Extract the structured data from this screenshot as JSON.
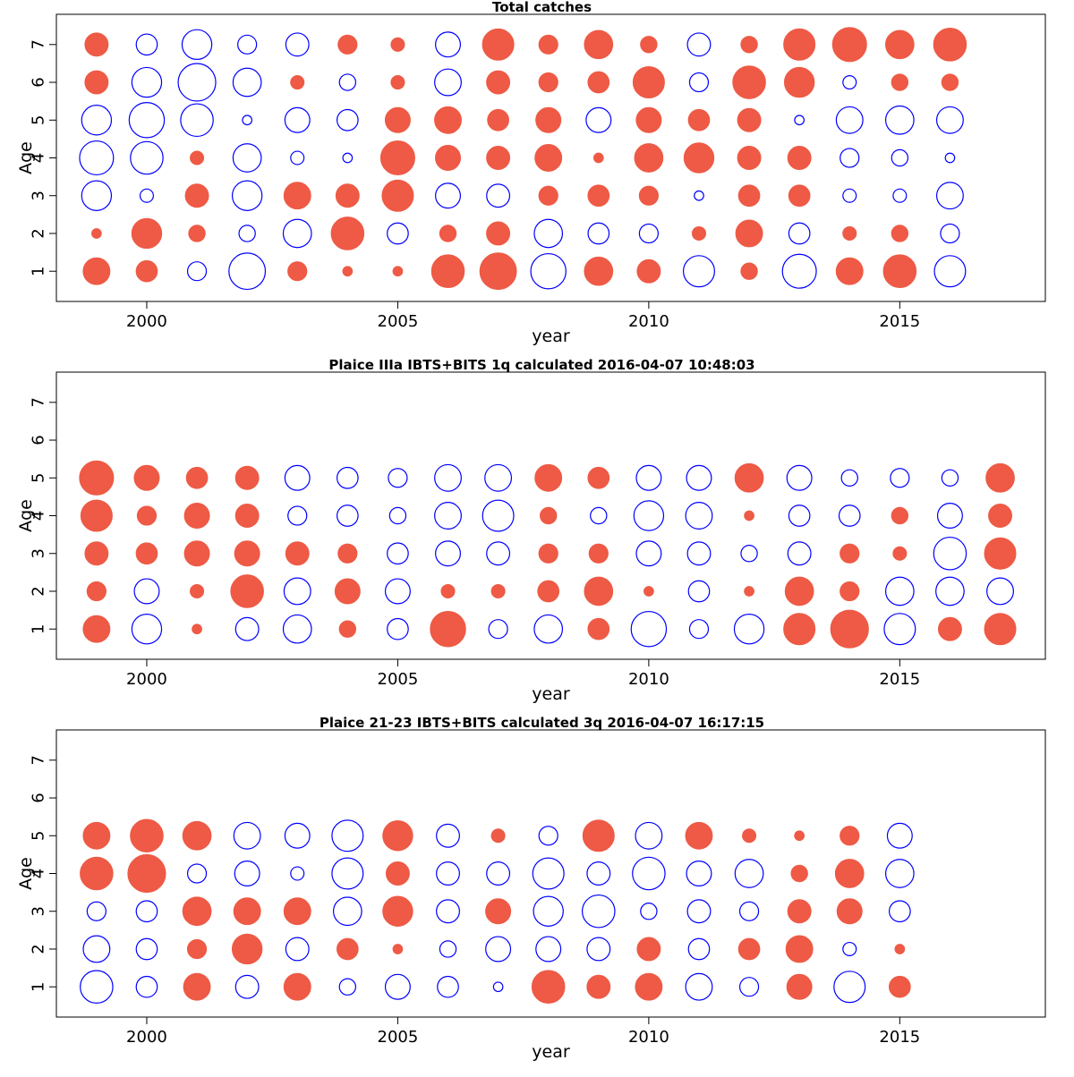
{
  "colors": {
    "positive": "#EE5A45",
    "negative": "#0000FF",
    "axis": "#000000"
  },
  "chart_data": [
    {
      "type": "scatter",
      "title": "Total catches",
      "xlabel": "year",
      "ylabel": "Age",
      "xlim": [
        1998.2,
        2017.9
      ],
      "ylim": [
        0.2,
        7.8
      ],
      "xticks": [
        2000,
        2005,
        2010,
        2015
      ],
      "yticks": [
        1,
        2,
        3,
        4,
        5,
        6,
        7
      ],
      "encoding": "circle area ~ |residual|; filled red = positive, open blue = negative",
      "years": [
        1999,
        2000,
        2001,
        2002,
        2003,
        2004,
        2005,
        2006,
        2007,
        2008,
        2009,
        2010,
        2011,
        2012,
        2013,
        2014,
        2015,
        2016
      ],
      "ages": [
        1,
        2,
        3,
        4,
        5,
        6,
        7
      ],
      "residuals": [
        [
          0.8,
          0.5,
          -0.4,
          -1.5,
          0.4,
          0.1,
          0.1,
          1.2,
          1.5,
          -1.4,
          0.9,
          0.6,
          -1.1,
          0.3,
          -1.3,
          0.8,
          1.2,
          -1.1
        ],
        [
          0.1,
          1.0,
          0.3,
          -0.3,
          -0.9,
          1.2,
          -0.5,
          0.3,
          0.6,
          -0.9,
          -0.5,
          -0.4,
          0.2,
          0.8,
          -0.5,
          0.2,
          0.3,
          -0.4
        ],
        [
          -1.0,
          -0.2,
          0.6,
          -1.0,
          0.8,
          0.6,
          1.1,
          -0.7,
          -0.6,
          0.4,
          0.5,
          0.4,
          -0.1,
          0.5,
          0.5,
          -0.2,
          -0.2,
          -0.8
        ],
        [
          -1.3,
          -1.2,
          0.2,
          -0.9,
          -0.2,
          -0.1,
          1.3,
          0.7,
          0.6,
          0.8,
          0.1,
          0.9,
          1.0,
          0.6,
          0.6,
          -0.4,
          -0.3,
          -0.1
        ],
        [
          -1.0,
          -1.4,
          -1.2,
          -0.1,
          -0.7,
          -0.5,
          0.7,
          0.8,
          0.5,
          0.7,
          -0.7,
          0.7,
          0.5,
          0.6,
          -0.1,
          -0.8,
          -0.9,
          -0.8
        ],
        [
          0.6,
          -1.0,
          -1.6,
          -0.9,
          0.2,
          -0.3,
          0.2,
          -0.8,
          0.6,
          0.4,
          0.5,
          1.1,
          -0.4,
          1.2,
          1.0,
          -0.2,
          0.3,
          0.3
        ],
        [
          0.6,
          -0.5,
          -1.0,
          -0.4,
          -0.6,
          0.4,
          0.2,
          -0.7,
          1.1,
          0.4,
          0.9,
          0.3,
          -0.6,
          0.3,
          1.1,
          1.3,
          0.9,
          1.2
        ]
      ]
    },
    {
      "type": "scatter",
      "title": "Plaice IIIa IBTS+BITS 1q calculated 2016-04-07 10:48:03",
      "xlabel": "year",
      "ylabel": "Age",
      "xlim": [
        1998.2,
        2017.9
      ],
      "ylim": [
        0.2,
        7.8
      ],
      "xticks": [
        2000,
        2005,
        2010,
        2015
      ],
      "yticks": [
        1,
        2,
        3,
        4,
        5,
        6,
        7
      ],
      "encoding": "circle area ~ |residual|; filled red = positive, open blue = negative",
      "years": [
        1999,
        2000,
        2001,
        2002,
        2003,
        2004,
        2005,
        2006,
        2007,
        2008,
        2009,
        2010,
        2011,
        2012,
        2013,
        2014,
        2015,
        2016,
        2017
      ],
      "ages": [
        1,
        2,
        3,
        4,
        5
      ],
      "residuals": [
        [
          0.8,
          -1.0,
          0.1,
          -0.6,
          -0.9,
          0.3,
          -0.5,
          1.4,
          -0.4,
          -0.9,
          0.5,
          -1.4,
          -0.4,
          -1.0,
          1.1,
          1.6,
          -1.1,
          0.6,
          1.1
        ],
        [
          0.4,
          -0.7,
          0.2,
          1.2,
          -0.8,
          0.7,
          -0.7,
          0.2,
          0.2,
          0.5,
          0.9,
          0.1,
          -0.5,
          0.1,
          0.9,
          0.4,
          -0.9,
          -0.9,
          -0.8
        ],
        [
          0.6,
          0.5,
          0.7,
          0.7,
          0.6,
          0.4,
          -0.5,
          -0.7,
          -0.6,
          0.4,
          0.4,
          -0.7,
          -0.6,
          -0.3,
          -0.6,
          0.4,
          0.2,
          -1.2,
          1.1
        ],
        [
          1.1,
          0.4,
          0.7,
          0.6,
          -0.4,
          -0.5,
          -0.3,
          -0.8,
          -1.1,
          0.3,
          -0.3,
          -1.0,
          -0.8,
          0.1,
          -0.5,
          -0.5,
          0.3,
          -0.7,
          0.6
        ],
        [
          1.3,
          0.7,
          0.5,
          0.6,
          -0.7,
          -0.5,
          -0.4,
          -0.8,
          -0.8,
          0.8,
          0.5,
          -0.7,
          -0.7,
          0.9,
          -0.7,
          -0.3,
          -0.4,
          -0.3,
          0.9
        ]
      ]
    },
    {
      "type": "scatter",
      "title": "Plaice 21-23 IBTS+BITS calculated 3q 2016-04-07 16:17:15",
      "xlabel": "year",
      "ylabel": "Age",
      "xlim": [
        1998.2,
        2017.9
      ],
      "ylim": [
        0.2,
        7.8
      ],
      "xticks": [
        2000,
        2005,
        2010,
        2015
      ],
      "yticks": [
        1,
        2,
        3,
        4,
        5,
        6,
        7
      ],
      "encoding": "circle area ~ |residual|; filled red = positive, open blue = negative",
      "years": [
        1999,
        2000,
        2001,
        2002,
        2003,
        2004,
        2005,
        2006,
        2007,
        2008,
        2009,
        2010,
        2011,
        2012,
        2013,
        2014,
        2015
      ],
      "ages": [
        1,
        2,
        3,
        4,
        5
      ],
      "residuals": [
        [
          -1.2,
          -0.5,
          0.8,
          -0.6,
          0.8,
          -0.3,
          -0.7,
          -0.5,
          -0.1,
          1.2,
          0.6,
          0.8,
          -0.8,
          -0.4,
          0.7,
          -1.1,
          0.5
        ],
        [
          -0.8,
          -0.5,
          0.4,
          1.0,
          -0.6,
          0.5,
          0.1,
          -0.3,
          -0.7,
          -0.7,
          -0.6,
          0.6,
          -0.5,
          0.5,
          0.8,
          -0.2,
          0.1
        ],
        [
          -0.4,
          -0.5,
          0.9,
          0.8,
          0.8,
          -0.9,
          1.0,
          -0.6,
          0.7,
          -1.0,
          -1.2,
          -0.3,
          -0.6,
          -0.4,
          0.6,
          0.7,
          -0.5
        ],
        [
          1.2,
          1.6,
          -0.4,
          -0.7,
          -0.2,
          -1.1,
          0.6,
          -0.6,
          -0.6,
          -1.1,
          -0.6,
          -1.2,
          -0.7,
          -0.9,
          0.3,
          0.9,
          -0.9
        ],
        [
          0.8,
          1.2,
          0.9,
          -0.8,
          -0.7,
          -1.1,
          1.0,
          -0.6,
          0.2,
          -0.4,
          1.1,
          -0.8,
          0.8,
          0.2,
          0.1,
          0.4,
          -0.7
        ]
      ]
    }
  ]
}
